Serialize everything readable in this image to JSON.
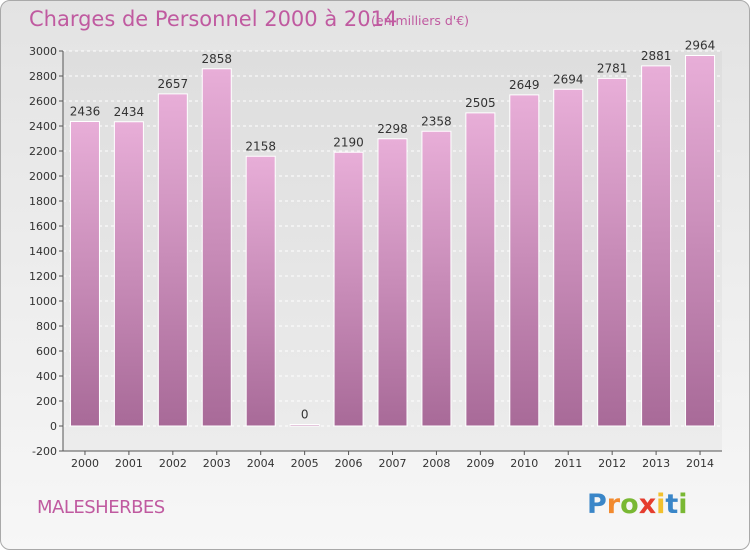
{
  "title": "Charges de Personnel 2000 à 2014",
  "subtitle": "(en milliers d'€)",
  "commune": "MALESHERBES",
  "logo": {
    "letters": [
      "P",
      "r",
      "o",
      "x",
      "i",
      "t",
      "i"
    ],
    "colors": [
      "#3a86c8",
      "#f28a2e",
      "#79b833",
      "#e53d2e",
      "#f2c12e",
      "#3a86c8",
      "#79b833"
    ]
  },
  "colors": {
    "title": "#c05aa0",
    "bar_top": "#e8aed8",
    "bar_bottom": "#a86a98"
  },
  "chart_data": {
    "type": "bar",
    "categories": [
      "2000",
      "2001",
      "2002",
      "2003",
      "2004",
      "2005",
      "2006",
      "2007",
      "2008",
      "2009",
      "2010",
      "2011",
      "2012",
      "2013",
      "2014"
    ],
    "values": [
      2436,
      2434,
      2657,
      2858,
      2158,
      0,
      2190,
      2298,
      2358,
      2505,
      2649,
      2694,
      2781,
      2881,
      2964
    ],
    "ylim": [
      -200,
      3000
    ],
    "yticks": [
      -200,
      0,
      200,
      400,
      600,
      800,
      1000,
      1200,
      1400,
      1600,
      1800,
      2000,
      2200,
      2400,
      2600,
      2800,
      3000
    ],
    "grid": true,
    "legend": "none",
    "xlabel": "",
    "ylabel": ""
  }
}
